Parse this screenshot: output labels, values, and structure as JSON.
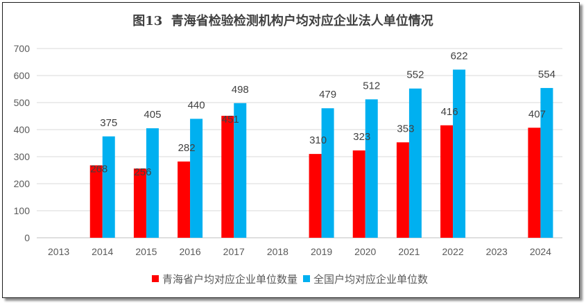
{
  "chart_data": {
    "type": "bar",
    "title": "图13  青海省检验检测机构户均对应企业法人单位情况",
    "categories": [
      "2013",
      "2014",
      "2015",
      "2016",
      "2017",
      "2018",
      "2019",
      "2020",
      "2021",
      "2022",
      "2023",
      "2024"
    ],
    "series": [
      {
        "name": "青海省户均对应企业单位数量",
        "color": "#FF0000",
        "values": [
          null,
          268,
          256,
          282,
          451,
          null,
          310,
          323,
          353,
          416,
          null,
          407
        ]
      },
      {
        "name": "全国户均对应企业单位数",
        "color": "#00B0F0",
        "values": [
          null,
          375,
          405,
          440,
          498,
          null,
          479,
          512,
          552,
          622,
          null,
          554
        ]
      }
    ],
    "ylim": [
      0,
      700
    ],
    "yticks": [
      0,
      100,
      200,
      300,
      400,
      500,
      600,
      700
    ],
    "grid": true,
    "grid_color": "#D9D9D9",
    "axis_color": "#BFBFBF",
    "legend_position": "bottom"
  }
}
